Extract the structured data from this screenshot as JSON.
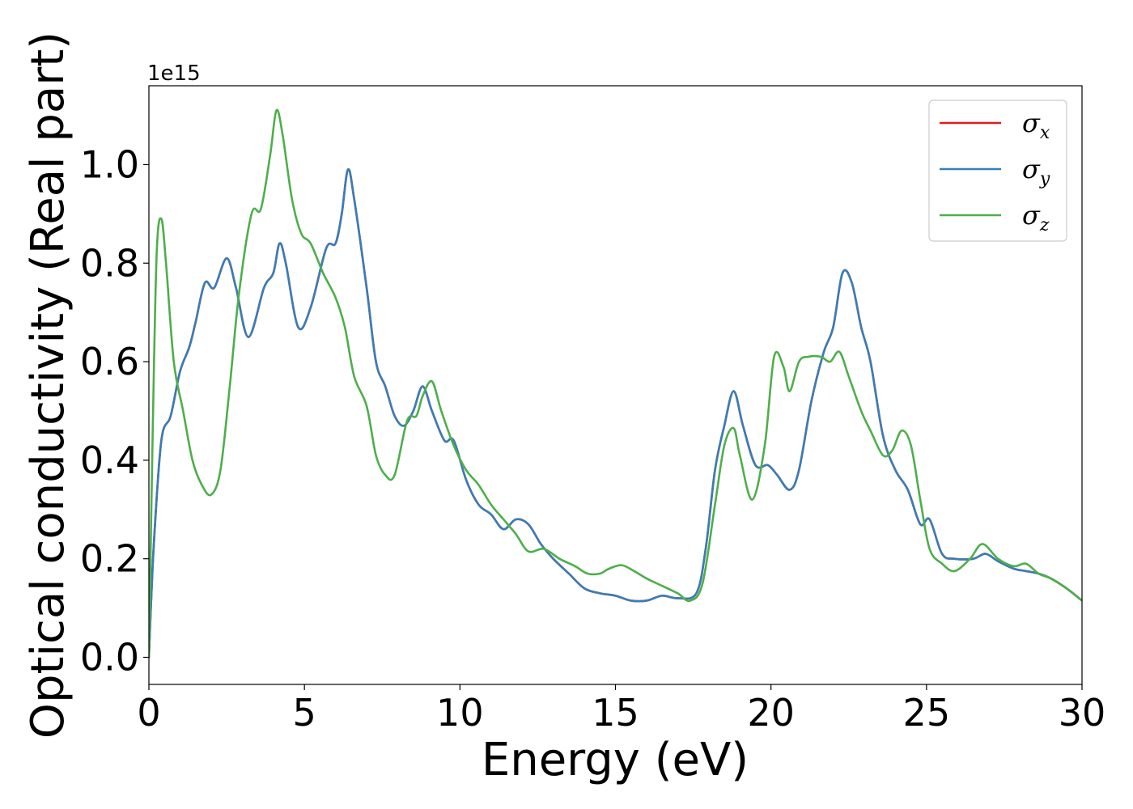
{
  "chart_data": {
    "type": "line",
    "title": "",
    "xlabel": "Energy (eV)",
    "ylabel": "Optical conductivity (Real part)",
    "y_offset_text": "1e15",
    "xlim": [
      0,
      30
    ],
    "ylim": [
      -0.055,
      1.16
    ],
    "x_ticks": [
      0,
      5,
      10,
      15,
      20,
      25,
      30
    ],
    "x_tick_labels": [
      "0",
      "5",
      "10",
      "15",
      "20",
      "25",
      "30"
    ],
    "y_ticks": [
      0.0,
      0.2,
      0.4,
      0.6,
      0.8,
      1.0
    ],
    "y_tick_labels": [
      "0.0",
      "0.2",
      "0.4",
      "0.6",
      "0.8",
      "1.0"
    ],
    "grid": false,
    "legend_position": "top-right",
    "series": [
      {
        "name": "σx",
        "symbol": "σ",
        "subscript": "x",
        "color": "#e41a1c",
        "points": [
          [
            0,
            0
          ],
          [
            0.15,
            0.22
          ],
          [
            0.4,
            0.44
          ],
          [
            0.7,
            0.49
          ],
          [
            1.0,
            0.58
          ],
          [
            1.3,
            0.63
          ],
          [
            1.5,
            0.68
          ],
          [
            1.8,
            0.76
          ],
          [
            2.1,
            0.75
          ],
          [
            2.5,
            0.81
          ],
          [
            2.8,
            0.75
          ],
          [
            3.2,
            0.65
          ],
          [
            3.7,
            0.75
          ],
          [
            4.0,
            0.78
          ],
          [
            4.2,
            0.84
          ],
          [
            4.4,
            0.8
          ],
          [
            4.8,
            0.67
          ],
          [
            5.2,
            0.71
          ],
          [
            5.7,
            0.83
          ],
          [
            6.0,
            0.84
          ],
          [
            6.2,
            0.9
          ],
          [
            6.4,
            0.99
          ],
          [
            6.6,
            0.93
          ],
          [
            7.0,
            0.75
          ],
          [
            7.3,
            0.6
          ],
          [
            7.6,
            0.55
          ],
          [
            7.9,
            0.49
          ],
          [
            8.2,
            0.47
          ],
          [
            8.5,
            0.5
          ],
          [
            8.8,
            0.55
          ],
          [
            9.1,
            0.5
          ],
          [
            9.5,
            0.44
          ],
          [
            9.8,
            0.44
          ],
          [
            10.2,
            0.36
          ],
          [
            10.6,
            0.31
          ],
          [
            11.0,
            0.29
          ],
          [
            11.4,
            0.26
          ],
          [
            11.8,
            0.28
          ],
          [
            12.2,
            0.27
          ],
          [
            12.6,
            0.23
          ],
          [
            13.0,
            0.2
          ],
          [
            13.5,
            0.17
          ],
          [
            14.0,
            0.14
          ],
          [
            14.5,
            0.13
          ],
          [
            15.0,
            0.125
          ],
          [
            15.5,
            0.115
          ],
          [
            16.0,
            0.115
          ],
          [
            16.5,
            0.125
          ],
          [
            17.0,
            0.12
          ],
          [
            17.6,
            0.13
          ],
          [
            17.9,
            0.22
          ],
          [
            18.2,
            0.38
          ],
          [
            18.5,
            0.47
          ],
          [
            18.8,
            0.54
          ],
          [
            19.1,
            0.47
          ],
          [
            19.5,
            0.39
          ],
          [
            19.9,
            0.39
          ],
          [
            20.2,
            0.37
          ],
          [
            20.6,
            0.34
          ],
          [
            20.9,
            0.38
          ],
          [
            21.3,
            0.52
          ],
          [
            21.7,
            0.62
          ],
          [
            22.0,
            0.67
          ],
          [
            22.3,
            0.78
          ],
          [
            22.6,
            0.76
          ],
          [
            22.9,
            0.67
          ],
          [
            23.2,
            0.6
          ],
          [
            23.6,
            0.45
          ],
          [
            24.0,
            0.38
          ],
          [
            24.4,
            0.34
          ],
          [
            24.8,
            0.27
          ],
          [
            25.1,
            0.28
          ],
          [
            25.5,
            0.21
          ],
          [
            25.9,
            0.2
          ],
          [
            26.5,
            0.2
          ],
          [
            26.9,
            0.21
          ],
          [
            27.3,
            0.195
          ],
          [
            27.8,
            0.18
          ],
          [
            28.2,
            0.175
          ],
          [
            28.6,
            0.17
          ],
          [
            29.0,
            0.16
          ],
          [
            29.5,
            0.14
          ],
          [
            30.0,
            0.115
          ]
        ]
      },
      {
        "name": "σy",
        "symbol": "σ",
        "subscript": "y",
        "color": "#377eb8",
        "points": [
          [
            0,
            0
          ],
          [
            0.15,
            0.22
          ],
          [
            0.4,
            0.44
          ],
          [
            0.7,
            0.49
          ],
          [
            1.0,
            0.58
          ],
          [
            1.3,
            0.63
          ],
          [
            1.5,
            0.68
          ],
          [
            1.8,
            0.76
          ],
          [
            2.1,
            0.75
          ],
          [
            2.5,
            0.81
          ],
          [
            2.8,
            0.75
          ],
          [
            3.2,
            0.65
          ],
          [
            3.7,
            0.75
          ],
          [
            4.0,
            0.78
          ],
          [
            4.2,
            0.84
          ],
          [
            4.4,
            0.8
          ],
          [
            4.8,
            0.67
          ],
          [
            5.2,
            0.71
          ],
          [
            5.7,
            0.83
          ],
          [
            6.0,
            0.84
          ],
          [
            6.2,
            0.9
          ],
          [
            6.4,
            0.99
          ],
          [
            6.6,
            0.93
          ],
          [
            7.0,
            0.75
          ],
          [
            7.3,
            0.6
          ],
          [
            7.6,
            0.55
          ],
          [
            7.9,
            0.49
          ],
          [
            8.2,
            0.47
          ],
          [
            8.5,
            0.5
          ],
          [
            8.8,
            0.55
          ],
          [
            9.1,
            0.5
          ],
          [
            9.5,
            0.44
          ],
          [
            9.8,
            0.44
          ],
          [
            10.2,
            0.36
          ],
          [
            10.6,
            0.31
          ],
          [
            11.0,
            0.29
          ],
          [
            11.4,
            0.26
          ],
          [
            11.8,
            0.28
          ],
          [
            12.2,
            0.27
          ],
          [
            12.6,
            0.23
          ],
          [
            13.0,
            0.2
          ],
          [
            13.5,
            0.17
          ],
          [
            14.0,
            0.14
          ],
          [
            14.5,
            0.13
          ],
          [
            15.0,
            0.125
          ],
          [
            15.5,
            0.115
          ],
          [
            16.0,
            0.115
          ],
          [
            16.5,
            0.125
          ],
          [
            17.0,
            0.12
          ],
          [
            17.6,
            0.13
          ],
          [
            17.9,
            0.22
          ],
          [
            18.2,
            0.38
          ],
          [
            18.5,
            0.47
          ],
          [
            18.8,
            0.54
          ],
          [
            19.1,
            0.47
          ],
          [
            19.5,
            0.39
          ],
          [
            19.9,
            0.39
          ],
          [
            20.2,
            0.37
          ],
          [
            20.6,
            0.34
          ],
          [
            20.9,
            0.38
          ],
          [
            21.3,
            0.52
          ],
          [
            21.7,
            0.62
          ],
          [
            22.0,
            0.67
          ],
          [
            22.3,
            0.78
          ],
          [
            22.6,
            0.76
          ],
          [
            22.9,
            0.67
          ],
          [
            23.2,
            0.6
          ],
          [
            23.6,
            0.45
          ],
          [
            24.0,
            0.38
          ],
          [
            24.4,
            0.34
          ],
          [
            24.8,
            0.27
          ],
          [
            25.1,
            0.28
          ],
          [
            25.5,
            0.21
          ],
          [
            25.9,
            0.2
          ],
          [
            26.5,
            0.2
          ],
          [
            26.9,
            0.21
          ],
          [
            27.3,
            0.195
          ],
          [
            27.8,
            0.18
          ],
          [
            28.2,
            0.175
          ],
          [
            28.6,
            0.17
          ],
          [
            29.0,
            0.16
          ],
          [
            29.5,
            0.14
          ],
          [
            30.0,
            0.115
          ]
        ]
      },
      {
        "name": "σz",
        "symbol": "σ",
        "subscript": "z",
        "color": "#4daf4a",
        "points": [
          [
            0,
            0
          ],
          [
            0.12,
            0.45
          ],
          [
            0.25,
            0.82
          ],
          [
            0.4,
            0.89
          ],
          [
            0.55,
            0.8
          ],
          [
            0.8,
            0.6
          ],
          [
            1.1,
            0.5
          ],
          [
            1.4,
            0.4
          ],
          [
            1.7,
            0.35
          ],
          [
            2.0,
            0.33
          ],
          [
            2.3,
            0.38
          ],
          [
            2.6,
            0.55
          ],
          [
            2.9,
            0.74
          ],
          [
            3.3,
            0.9
          ],
          [
            3.6,
            0.91
          ],
          [
            3.9,
            1.02
          ],
          [
            4.1,
            1.11
          ],
          [
            4.3,
            1.06
          ],
          [
            4.6,
            0.93
          ],
          [
            4.9,
            0.86
          ],
          [
            5.2,
            0.84
          ],
          [
            5.6,
            0.78
          ],
          [
            6.0,
            0.73
          ],
          [
            6.3,
            0.67
          ],
          [
            6.6,
            0.57
          ],
          [
            7.0,
            0.51
          ],
          [
            7.3,
            0.41
          ],
          [
            7.6,
            0.37
          ],
          [
            7.9,
            0.37
          ],
          [
            8.3,
            0.48
          ],
          [
            8.6,
            0.49
          ],
          [
            8.8,
            0.53
          ],
          [
            9.1,
            0.56
          ],
          [
            9.4,
            0.5
          ],
          [
            9.8,
            0.43
          ],
          [
            10.2,
            0.38
          ],
          [
            10.6,
            0.35
          ],
          [
            11.0,
            0.31
          ],
          [
            11.4,
            0.28
          ],
          [
            11.8,
            0.25
          ],
          [
            12.2,
            0.215
          ],
          [
            12.7,
            0.22
          ],
          [
            13.2,
            0.2
          ],
          [
            13.7,
            0.185
          ],
          [
            14.1,
            0.17
          ],
          [
            14.5,
            0.17
          ],
          [
            14.8,
            0.18
          ],
          [
            15.2,
            0.187
          ],
          [
            15.6,
            0.175
          ],
          [
            16.0,
            0.16
          ],
          [
            16.5,
            0.145
          ],
          [
            17.0,
            0.13
          ],
          [
            17.4,
            0.115
          ],
          [
            17.8,
            0.15
          ],
          [
            18.2,
            0.31
          ],
          [
            18.5,
            0.43
          ],
          [
            18.8,
            0.465
          ],
          [
            19.0,
            0.41
          ],
          [
            19.4,
            0.32
          ],
          [
            19.8,
            0.43
          ],
          [
            20.1,
            0.61
          ],
          [
            20.4,
            0.59
          ],
          [
            20.6,
            0.54
          ],
          [
            20.9,
            0.6
          ],
          [
            21.2,
            0.61
          ],
          [
            21.6,
            0.61
          ],
          [
            21.9,
            0.6
          ],
          [
            22.2,
            0.62
          ],
          [
            22.5,
            0.57
          ],
          [
            22.9,
            0.5
          ],
          [
            23.2,
            0.46
          ],
          [
            23.6,
            0.41
          ],
          [
            23.9,
            0.42
          ],
          [
            24.2,
            0.46
          ],
          [
            24.5,
            0.43
          ],
          [
            24.8,
            0.32
          ],
          [
            25.1,
            0.22
          ],
          [
            25.5,
            0.19
          ],
          [
            25.9,
            0.175
          ],
          [
            26.4,
            0.2
          ],
          [
            26.8,
            0.23
          ],
          [
            27.3,
            0.2
          ],
          [
            27.8,
            0.185
          ],
          [
            28.2,
            0.19
          ],
          [
            28.6,
            0.17
          ],
          [
            29.0,
            0.16
          ],
          [
            29.5,
            0.14
          ],
          [
            30.0,
            0.115
          ]
        ]
      }
    ]
  }
}
